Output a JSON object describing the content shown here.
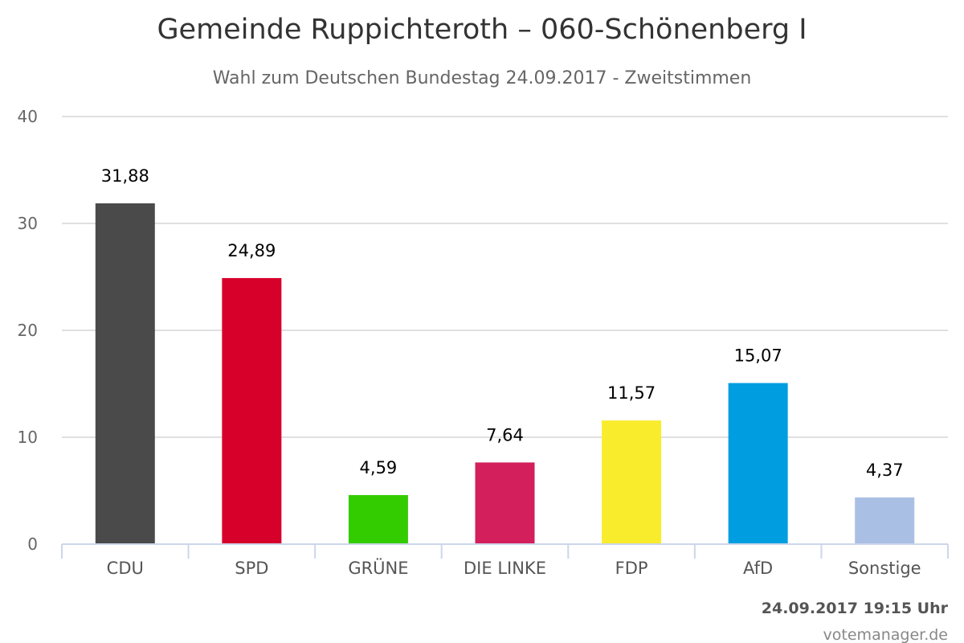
{
  "chart_data": {
    "type": "bar",
    "title": "Gemeinde Ruppichteroth – 060-Schönenberg I",
    "subtitle": "Wahl zum Deutschen Bundestag 24.09.2017 - Zweitstimmen",
    "categories": [
      "CDU",
      "SPD",
      "GRÜNE",
      "DIE LINKE",
      "FDP",
      "AfD",
      "Sonstige"
    ],
    "values": [
      31.88,
      24.89,
      4.59,
      7.64,
      11.57,
      15.07,
      4.37
    ],
    "data_labels": [
      "31,88",
      "24,89",
      "4,59",
      "7,64",
      "11,57",
      "15,07",
      "4,37"
    ],
    "colors": [
      "#4a4a4a",
      "#d7002b",
      "#33cc00",
      "#d31f5b",
      "#f9ec2d",
      "#009ee0",
      "#aabfe4"
    ],
    "ylim": [
      0,
      40
    ],
    "yticks": [
      0,
      10,
      20,
      30,
      40
    ],
    "xlabel": "",
    "ylabel": "",
    "grid": true,
    "legend": "none"
  },
  "footer": {
    "timestamp": "24.09.2017 19:15 Uhr",
    "credit": "votemanager.de"
  }
}
